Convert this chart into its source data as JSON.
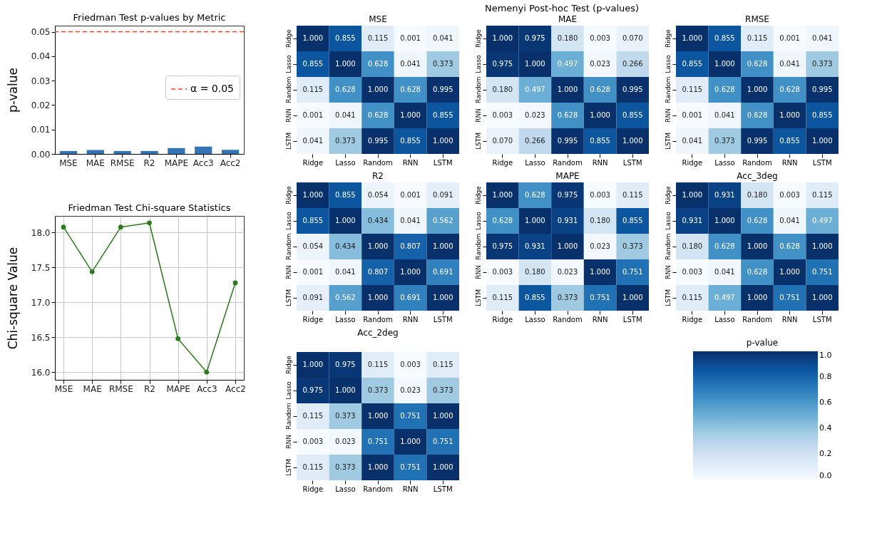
{
  "chart_data": [
    {
      "type": "bar",
      "title": "Friedman Test p-values by Metric",
      "ylabel": "p-value",
      "categories": [
        "MSE",
        "MAE",
        "RMSE",
        "R2",
        "MAPE",
        "Acc3",
        "Acc2"
      ],
      "values": [
        0.0012,
        0.0016,
        0.0012,
        0.0012,
        0.0024,
        0.003,
        0.0017
      ],
      "color": "#3574b3",
      "ylim": [
        0,
        0.0525
      ],
      "yticks": [
        {
          "value": 0,
          "label": "0.00"
        },
        {
          "value": 0.01,
          "label": "0.01"
        },
        {
          "value": 0.02,
          "label": "0.02"
        },
        {
          "value": 0.03,
          "label": "0.03"
        },
        {
          "value": 0.04,
          "label": "0.04"
        },
        {
          "value": 0.05,
          "label": "0.05"
        }
      ],
      "ref_lines": [
        {
          "axis": "y",
          "value": 0.05,
          "label": "α = 0.05",
          "color": "#e8412c",
          "line_style": "dashed"
        }
      ],
      "legend": "right",
      "grid": false
    },
    {
      "type": "line",
      "title": "Friedman Test Chi-square Statistics",
      "ylabel": "Chi-square Value",
      "categories": [
        "MSE",
        "MAE",
        "RMSE",
        "R2",
        "MAPE",
        "Acc3",
        "Acc2"
      ],
      "values": [
        18.08,
        17.44,
        18.08,
        18.14,
        16.48,
        16.0,
        17.28
      ],
      "color": "#2a7a1b",
      "ylim": [
        15.89,
        18.24
      ],
      "yticks": [
        {
          "value": 16,
          "label": "16.0"
        },
        {
          "value": 16.5,
          "label": "16.5"
        },
        {
          "value": 17,
          "label": "17.0"
        },
        {
          "value": 17.5,
          "label": "17.5"
        },
        {
          "value": 18,
          "label": "18.0"
        }
      ],
      "marker": "circle",
      "grid": true
    },
    {
      "type": "heatmap",
      "title": "MSE",
      "annotations": [
        "Nemenyi Post-hoc Test (p-values)"
      ],
      "categories": [
        "Ridge",
        "Lasso",
        "Random",
        "RNN",
        "LSTM"
      ],
      "y_categories": [
        "Ridge",
        "Lasso",
        "Random",
        "RNN",
        "LSTM"
      ],
      "cells": [
        [
          1.0,
          0.855,
          0.115,
          0.001,
          0.041
        ],
        [
          0.855,
          1.0,
          0.628,
          0.041,
          0.373
        ],
        [
          0.115,
          0.628,
          1.0,
          0.628,
          0.995
        ],
        [
          0.001,
          0.041,
          0.628,
          1.0,
          0.855
        ],
        [
          0.041,
          0.373,
          0.995,
          0.855,
          1.0
        ]
      ],
      "cell_labels": [
        [
          "1.000",
          "0.855",
          "0.115",
          "0.001",
          "0.041"
        ],
        [
          "0.855",
          "1.000",
          "0.628",
          "0.041",
          "0.373"
        ],
        [
          "0.115",
          "0.628",
          "1.000",
          "0.628",
          "0.995"
        ],
        [
          "0.001",
          "0.041",
          "0.628",
          "1.000",
          "0.855"
        ],
        [
          "0.041",
          "0.373",
          "0.995",
          "0.855",
          "1.000"
        ]
      ]
    },
    {
      "type": "heatmap",
      "title": "MAE",
      "categories": [
        "Ridge",
        "Lasso",
        "Random",
        "RNN",
        "LSTM"
      ],
      "y_categories": [
        "Ridge",
        "Lasso",
        "Random",
        "RNN",
        "LSTM"
      ],
      "cells": [
        [
          1.0,
          0.975,
          0.18,
          0.003,
          0.07
        ],
        [
          0.975,
          1.0,
          0.497,
          0.023,
          0.266
        ],
        [
          0.18,
          0.497,
          1.0,
          0.628,
          0.995
        ],
        [
          0.003,
          0.023,
          0.628,
          1.0,
          0.855
        ],
        [
          0.07,
          0.266,
          0.995,
          0.855,
          1.0
        ]
      ],
      "cell_labels": [
        [
          "1.000",
          "0.975",
          "0.180",
          "0.003",
          "0.070"
        ],
        [
          "0.975",
          "1.000",
          "0.497",
          "0.023",
          "0.266"
        ],
        [
          "0.180",
          "0.497",
          "1.000",
          "0.628",
          "0.995"
        ],
        [
          "0.003",
          "0.023",
          "0.628",
          "1.000",
          "0.855"
        ],
        [
          "0.070",
          "0.266",
          "0.995",
          "0.855",
          "1.000"
        ]
      ]
    },
    {
      "type": "heatmap",
      "title": "RMSE",
      "categories": [
        "Ridge",
        "Lasso",
        "Random",
        "RNN",
        "LSTM"
      ],
      "y_categories": [
        "Ridge",
        "Lasso",
        "Random",
        "RNN",
        "LSTM"
      ],
      "cells": [
        [
          1.0,
          0.855,
          0.115,
          0.001,
          0.041
        ],
        [
          0.855,
          1.0,
          0.628,
          0.041,
          0.373
        ],
        [
          0.115,
          0.628,
          1.0,
          0.628,
          0.995
        ],
        [
          0.001,
          0.041,
          0.628,
          1.0,
          0.855
        ],
        [
          0.041,
          0.373,
          0.995,
          0.855,
          1.0
        ]
      ],
      "cell_labels": [
        [
          "1.000",
          "0.855",
          "0.115",
          "0.001",
          "0.041"
        ],
        [
          "0.855",
          "1.000",
          "0.628",
          "0.041",
          "0.373"
        ],
        [
          "0.115",
          "0.628",
          "1.000",
          "0.628",
          "0.995"
        ],
        [
          "0.001",
          "0.041",
          "0.628",
          "1.000",
          "0.855"
        ],
        [
          "0.041",
          "0.373",
          "0.995",
          "0.855",
          "1.000"
        ]
      ]
    },
    {
      "type": "heatmap",
      "title": "R2",
      "categories": [
        "Ridge",
        "Lasso",
        "Random",
        "RNN",
        "LSTM"
      ],
      "y_categories": [
        "Ridge",
        "Lasso",
        "Random",
        "RNN",
        "LSTM"
      ],
      "cells": [
        [
          1.0,
          0.855,
          0.054,
          0.001,
          0.091
        ],
        [
          0.855,
          1.0,
          0.434,
          0.041,
          0.562
        ],
        [
          0.054,
          0.434,
          1.0,
          0.807,
          1.0
        ],
        [
          0.001,
          0.041,
          0.807,
          1.0,
          0.691
        ],
        [
          0.091,
          0.562,
          1.0,
          0.691,
          1.0
        ]
      ],
      "cell_labels": [
        [
          "1.000",
          "0.855",
          "0.054",
          "0.001",
          "0.091"
        ],
        [
          "0.855",
          "1.000",
          "0.434",
          "0.041",
          "0.562"
        ],
        [
          "0.054",
          "0.434",
          "1.000",
          "0.807",
          "1.000"
        ],
        [
          "0.001",
          "0.041",
          "0.807",
          "1.000",
          "0.691"
        ],
        [
          "0.091",
          "0.562",
          "1.000",
          "0.691",
          "1.000"
        ]
      ]
    },
    {
      "type": "heatmap",
      "title": "MAPE",
      "categories": [
        "Ridge",
        "Lasso",
        "Random",
        "RNN",
        "LSTM"
      ],
      "y_categories": [
        "Ridge",
        "Lasso",
        "Random",
        "RNN",
        "LSTM"
      ],
      "cells": [
        [
          1.0,
          0.628,
          0.975,
          0.003,
          0.115
        ],
        [
          0.628,
          1.0,
          0.931,
          0.18,
          0.855
        ],
        [
          0.975,
          0.931,
          1.0,
          0.023,
          0.373
        ],
        [
          0.003,
          0.18,
          0.023,
          1.0,
          0.751
        ],
        [
          0.115,
          0.855,
          0.373,
          0.751,
          1.0
        ]
      ],
      "cell_labels": [
        [
          "1.000",
          "0.628",
          "0.975",
          "0.003",
          "0.115"
        ],
        [
          "0.628",
          "1.000",
          "0.931",
          "0.180",
          "0.855"
        ],
        [
          "0.975",
          "0.931",
          "1.000",
          "0.023",
          "0.373"
        ],
        [
          "0.003",
          "0.180",
          "0.023",
          "1.000",
          "0.751"
        ],
        [
          "0.115",
          "0.855",
          "0.373",
          "0.751",
          "1.000"
        ]
      ]
    },
    {
      "type": "heatmap",
      "title": "Acc_3deg",
      "categories": [
        "Ridge",
        "Lasso",
        "Random",
        "RNN",
        "LSTM"
      ],
      "y_categories": [
        "Ridge",
        "Lasso",
        "Random",
        "RNN",
        "LSTM"
      ],
      "cells": [
        [
          1.0,
          0.931,
          0.18,
          0.003,
          0.115
        ],
        [
          0.931,
          1.0,
          0.628,
          0.041,
          0.497
        ],
        [
          0.18,
          0.628,
          1.0,
          0.628,
          1.0
        ],
        [
          0.003,
          0.041,
          0.628,
          1.0,
          0.751
        ],
        [
          0.115,
          0.497,
          1.0,
          0.751,
          1.0
        ]
      ],
      "cell_labels": [
        [
          "1.000",
          "0.931",
          "0.180",
          "0.003",
          "0.115"
        ],
        [
          "0.931",
          "1.000",
          "0.628",
          "0.041",
          "0.497"
        ],
        [
          "0.180",
          "0.628",
          "1.000",
          "0.628",
          "1.000"
        ],
        [
          "0.003",
          "0.041",
          "0.628",
          "1.000",
          "0.751"
        ],
        [
          "0.115",
          "0.497",
          "1.000",
          "0.751",
          "1.000"
        ]
      ]
    },
    {
      "type": "heatmap",
      "title": "Acc_2deg",
      "categories": [
        "Ridge",
        "Lasso",
        "Random",
        "RNN",
        "LSTM"
      ],
      "y_categories": [
        "Ridge",
        "Lasso",
        "Random",
        "RNN",
        "LSTM"
      ],
      "clim": [
        0,
        1
      ],
      "clabel": "p-value",
      "cticks": [
        {
          "value": 0,
          "label": "0.0"
        },
        {
          "value": 0.2,
          "label": "0.2"
        },
        {
          "value": 0.4,
          "label": "0.4"
        },
        {
          "value": 0.6,
          "label": "0.6"
        },
        {
          "value": 0.8,
          "label": "0.8"
        },
        {
          "value": 1,
          "label": "1.0"
        }
      ],
      "cells": [
        [
          1.0,
          0.975,
          0.115,
          0.003,
          0.115
        ],
        [
          0.975,
          1.0,
          0.373,
          0.023,
          0.373
        ],
        [
          0.115,
          0.373,
          1.0,
          0.751,
          1.0
        ],
        [
          0.003,
          0.023,
          0.751,
          1.0,
          0.751
        ],
        [
          0.115,
          0.373,
          1.0,
          0.751,
          1.0
        ]
      ],
      "cell_labels": [
        [
          "1.000",
          "0.975",
          "0.115",
          "0.003",
          "0.115"
        ],
        [
          "0.975",
          "1.000",
          "0.373",
          "0.023",
          "0.373"
        ],
        [
          "0.115",
          "0.373",
          "1.000",
          "0.751",
          "1.000"
        ],
        [
          "0.003",
          "0.023",
          "0.751",
          "1.000",
          "0.751"
        ],
        [
          "0.115",
          "0.373",
          "1.000",
          "0.751",
          "1.000"
        ]
      ]
    }
  ]
}
